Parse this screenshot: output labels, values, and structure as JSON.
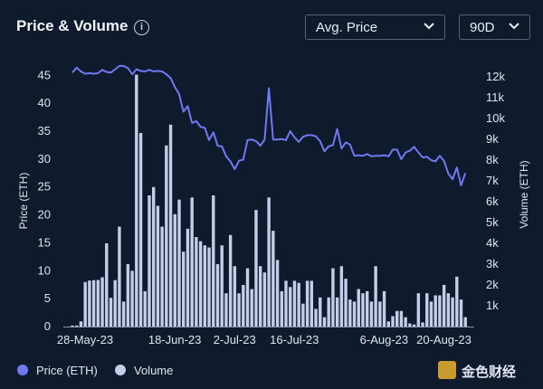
{
  "header": {
    "title": "Price & Volume",
    "info_icon": "info-icon",
    "metric_dropdown": "Avg. Price",
    "range_dropdown": "90D"
  },
  "legend": {
    "price_label": "Price (ETH)",
    "volume_label": "Volume"
  },
  "watermark": {
    "text": "金色财经"
  },
  "colors": {
    "background": "#0f1a2c",
    "price_line": "#7078f2",
    "volume_bars": "#c6cde9",
    "axis_text": "#dfe5ee"
  },
  "chart_data": {
    "type": "line",
    "secondary_type": "bar",
    "x_tick_labels": [
      "28-May-23",
      "18-Jun-23",
      "2-Jul-23",
      "16-Jul-23",
      "6-Aug-23",
      "20-Aug-23"
    ],
    "x_tick_day_index": [
      0,
      21,
      35,
      49,
      70,
      84
    ],
    "ylabel_left": "Price (ETH)",
    "ylabel_right": "Volume (ETH)",
    "ylim_left": [
      0,
      47
    ],
    "yticks_left": [
      0,
      5,
      10,
      15,
      20,
      25,
      30,
      35,
      40,
      45
    ],
    "ylim_right": [
      0,
      12600
    ],
    "yticks_right": [
      1000,
      2000,
      3000,
      4000,
      5000,
      6000,
      7000,
      8000,
      9000,
      10000,
      11000,
      12000
    ],
    "ytick_labels_right": [
      "1k",
      "2k",
      "3k",
      "4k",
      "5k",
      "6k",
      "7k",
      "8k",
      "9k",
      "10k",
      "11k",
      "12k"
    ],
    "series": [
      {
        "name": "Price (ETH)",
        "axis": "left",
        "values": [
          45.5,
          46.4,
          45.7,
          45.3,
          45.4,
          45.3,
          45.4,
          46.0,
          45.6,
          45.5,
          46.1,
          46.7,
          46.7,
          46.3,
          45.2,
          46.1,
          45.8,
          45.7,
          46.0,
          45.7,
          45.8,
          45.7,
          45.2,
          44.5,
          42.9,
          41.6,
          38.5,
          39.5,
          36.5,
          36.8,
          35.8,
          35.6,
          33.4,
          34.8,
          32.4,
          32.3,
          30.5,
          29.6,
          28.2,
          29.7,
          29.9,
          33.4,
          33.5,
          33.2,
          32.4,
          33.5,
          42.7,
          33.5,
          33.5,
          33.6,
          33.4,
          35.0,
          33.9,
          33.1,
          34.0,
          34.3,
          34.3,
          34.1,
          33.2,
          31.4,
          32.3,
          32.5,
          35.4,
          31.9,
          33.0,
          32.6,
          30.6,
          30.7,
          30.6,
          30.9,
          30.5,
          30.6,
          30.6,
          30.7,
          30.5,
          31.7,
          31.7,
          30.0,
          31.2,
          31.5,
          32.2,
          31.2,
          30.3,
          30.4,
          29.8,
          29.6,
          30.6,
          29.7,
          27.4,
          26.4,
          28.5,
          25.3,
          27.5
        ]
      },
      {
        "name": "Volume",
        "axis": "right",
        "values": [
          50,
          50,
          250,
          2140,
          2210,
          2230,
          2240,
          2370,
          4000,
          1380,
          2230,
          4800,
          1200,
          3000,
          2680,
          12100,
          9300,
          1700,
          6300,
          6700,
          5800,
          4800,
          8700,
          9700,
          5400,
          6100,
          3600,
          4700,
          6200,
          4300,
          4100,
          3900,
          3800,
          6300,
          3000,
          3900,
          1600,
          4400,
          2900,
          1600,
          2000,
          2800,
          1800,
          5600,
          2900,
          2600,
          6200,
          4600,
          3200,
          1700,
          2200,
          1900,
          2200,
          2100,
          1100,
          2200,
          2200,
          850,
          1400,
          450,
          1400,
          2800,
          1400,
          2900,
          2300,
          1300,
          1200,
          1800,
          1600,
          1700,
          1200,
          2900,
          1200,
          1700,
          250,
          500,
          750,
          750,
          450,
          150,
          100,
          1600,
          200,
          1600,
          1200,
          1500,
          1500,
          2000,
          1600,
          1400,
          2400,
          1300,
          450
        ]
      }
    ],
    "grid": false,
    "legend_position": "bottom-left"
  }
}
